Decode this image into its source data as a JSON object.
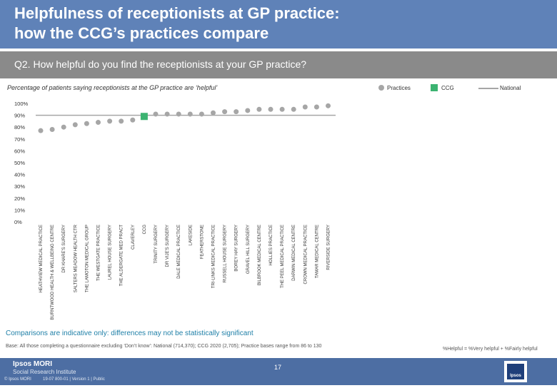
{
  "header": {
    "title_line1": "Helpfulness of receptionists at GP practice:",
    "title_line2": "how the CCG’s practices compare"
  },
  "question": "Q2. How helpful do you find the receptionists at your GP practice?",
  "subtitle": "Percentage of patients saying receptionists at the GP practice are ‘helpful’",
  "legend": {
    "practices": "Practices",
    "ccg": "CCG",
    "national": "National"
  },
  "colors": {
    "header": "#5f82b8",
    "question_bar": "#8a8a8a",
    "practice_marker": "#a6a6a6",
    "ccg_marker": "#3cb371",
    "national_line": "#a6a6a6",
    "footer": "#4d6ea3"
  },
  "chart_data": {
    "type": "scatter",
    "title": "Percentage of patients saying receptionists at the GP practice are ‘helpful’",
    "ylim": [
      0,
      100
    ],
    "yticks": [
      "0%",
      "10%",
      "20%",
      "30%",
      "40%",
      "50%",
      "60%",
      "70%",
      "80%",
      "90%",
      "100%"
    ],
    "national_value": 90,
    "categories": [
      "HEATHVIEW MEDICAL PRACTICE",
      "BURNTWOOD HEALTH & WELLBEING CENTRE",
      "DR KHARE'S SURGERY",
      "SALTERS MEADOW HEALTH CTR",
      "THE LAMOTON MEDICAL GROUP",
      "THE WESTGATE PRACTICE",
      "LAUREL HOUSE SURGERY",
      "THE ALDERGATE MED PRACT",
      "CLAVERLEY",
      "CCG",
      "TRINITY SURGERY",
      "DR VIJE'S SURGERY",
      "DALE MEDICAL PRACTICE",
      "LAKESIDE",
      "FEATHERSTONE",
      "TRI-LINKS MEDICAL PRACTICE",
      "RUSSELL HOUSE SURGERY",
      "BOREY HAY SURGERY",
      "GRAVEL HILL SURGERY",
      "BILBROOK MEDICAL CENTRE",
      "HOLLIES PRACTICE",
      "THE PEEL MEDICAL PRACTICE",
      "DARWIN MEDICAL CENTRE",
      "CROWN MEDICAL PRACTICE",
      "TAMAR MEDICAL CENTRE",
      "RIVERSIDE SURGERY"
    ],
    "values": [
      77,
      78,
      80,
      82,
      83,
      84,
      85,
      85,
      86,
      89,
      91,
      91,
      91,
      91,
      91,
      92,
      93,
      93,
      94,
      95,
      95,
      95,
      95,
      97,
      97,
      98
    ],
    "ccg_index": 9
  },
  "caveat": "Comparisons are indicative only: differences may not be statistically significant",
  "base": "Base: All those completing a questionnaire excluding ‘Don’t know’: National (714,370); CCG 2020 (2,705); Practice bases range from 86 to 130",
  "formula": "%Helpful = %Very helpful + %Fairly helpful",
  "footer": {
    "brand1": "Ipsos MORI",
    "brand2": "Social Research Institute",
    "page": "17",
    "copyright": "© Ipsos MORI",
    "job": "19-07 800-01 | Version 1 | Public",
    "logo": "Ipsos"
  }
}
